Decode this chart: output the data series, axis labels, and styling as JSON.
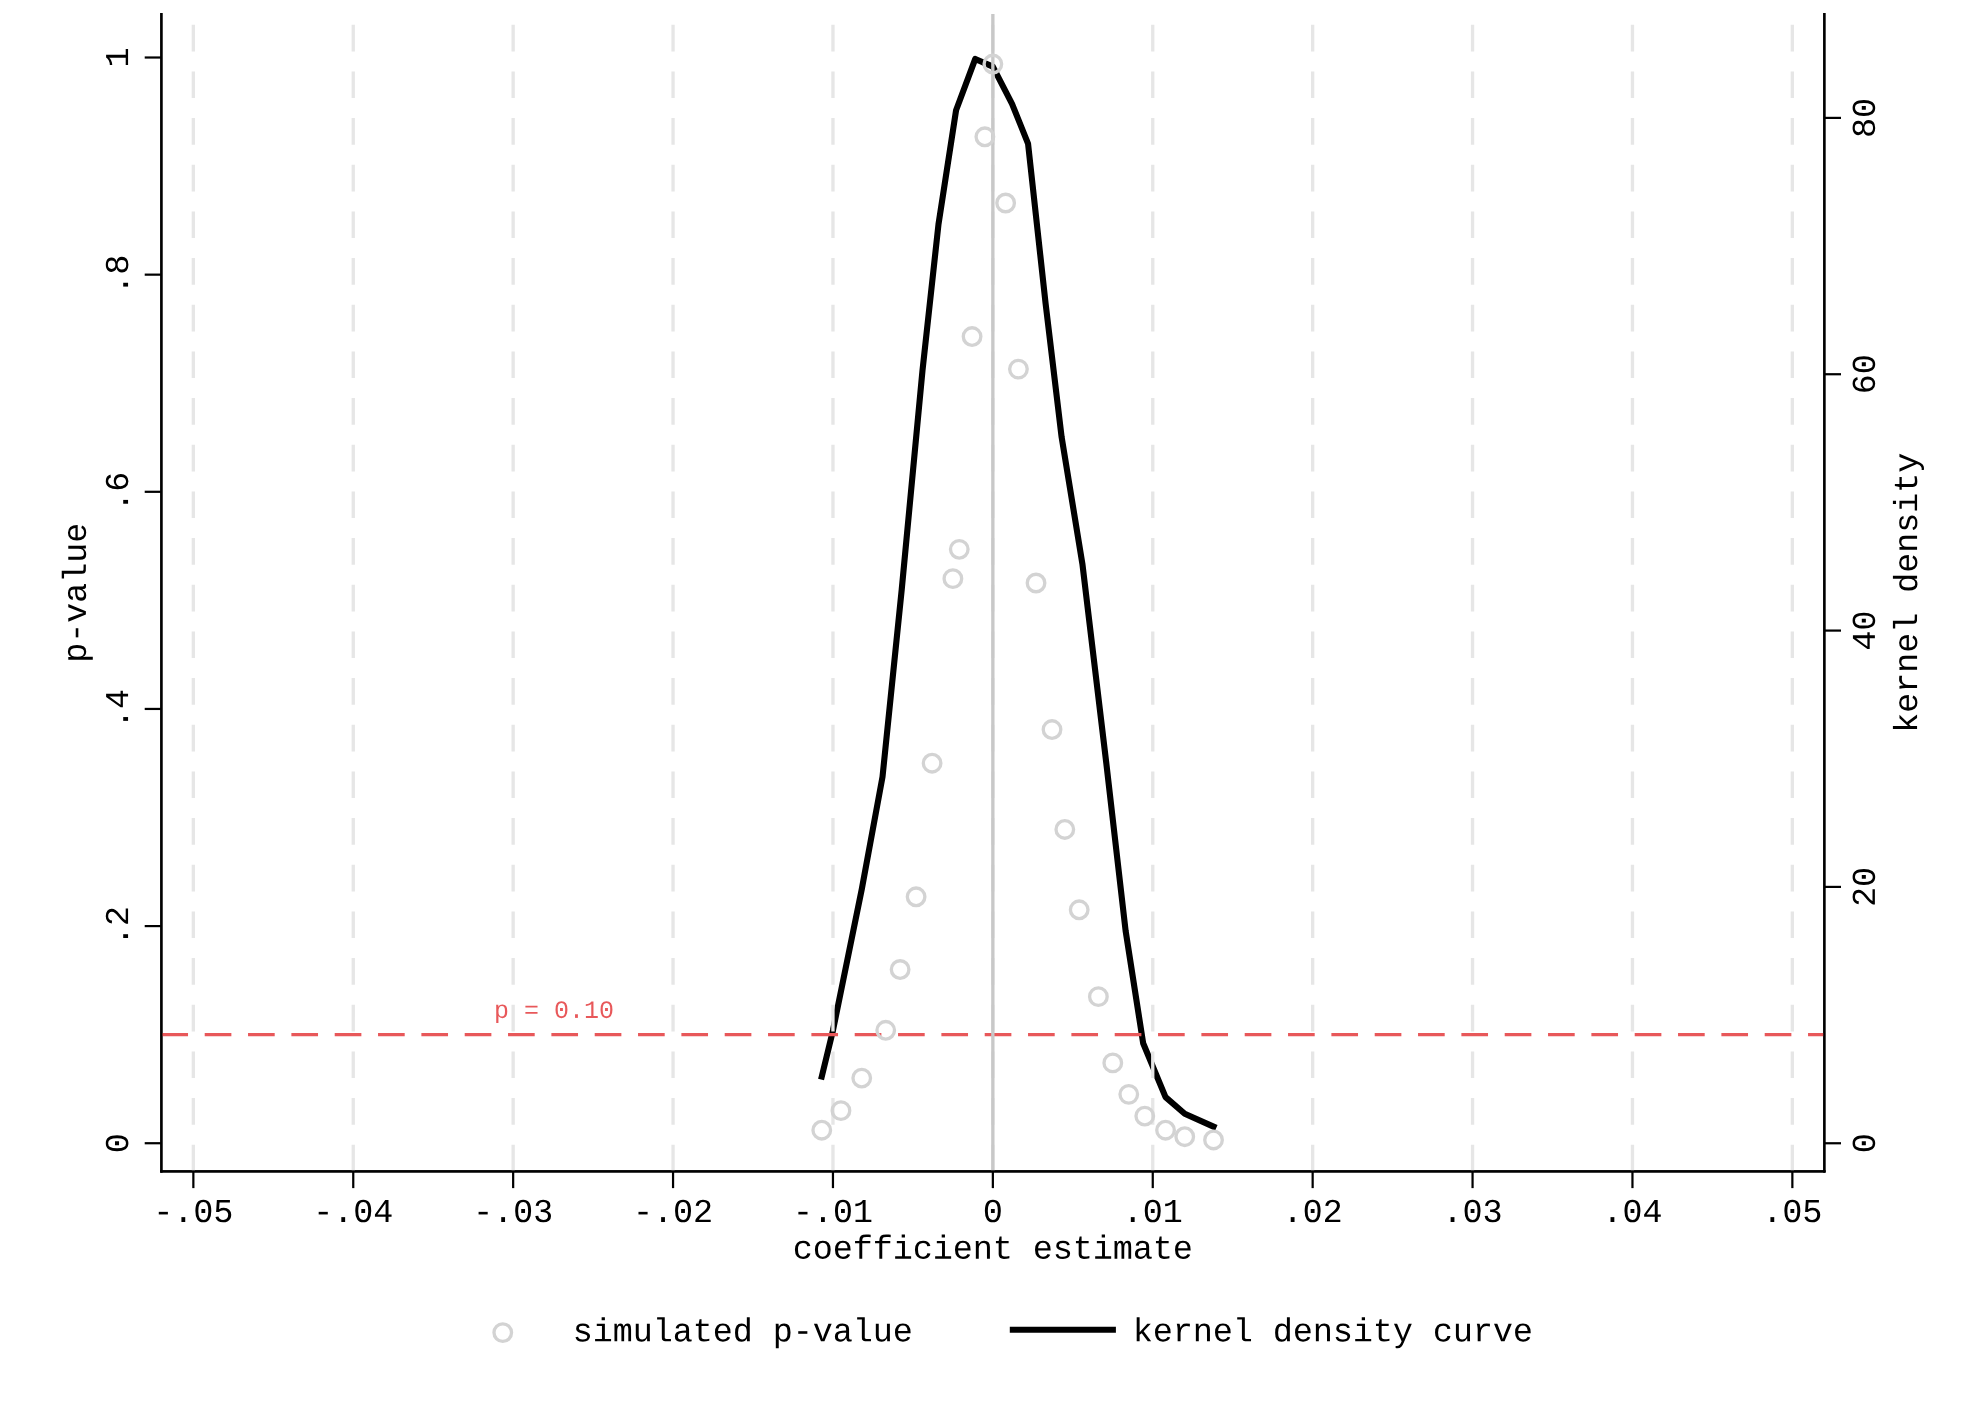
{
  "chart_data": {
    "type": "scatter",
    "xlabel": "coefficient estimate",
    "ylabel": "p-value",
    "y2label": "kernel density",
    "xlim": [
      -0.052,
      0.052
    ],
    "ylim": [
      -0.026,
      1.04
    ],
    "y2lim": [
      -2.2,
      88.1
    ],
    "xticks": [
      {
        "value": -0.05,
        "label": "-.05"
      },
      {
        "value": -0.04,
        "label": "-.04"
      },
      {
        "value": -0.03,
        "label": "-.03"
      },
      {
        "value": -0.02,
        "label": "-.02"
      },
      {
        "value": -0.01,
        "label": "-.01"
      },
      0,
      {
        "value": 0.01,
        "label": ".01"
      },
      {
        "value": 0.02,
        "label": ".02"
      },
      {
        "value": 0.03,
        "label": ".03"
      },
      {
        "value": 0.04,
        "label": ".04"
      },
      {
        "value": 0.05,
        "label": ".05"
      }
    ],
    "yticks": [
      0,
      {
        "value": 0.2,
        "label": ".2"
      },
      {
        "value": 0.4,
        "label": ".4"
      },
      {
        "value": 0.6,
        "label": ".6"
      },
      {
        "value": 0.8,
        "label": ".8"
      },
      1
    ],
    "y2ticks": [
      0,
      20,
      40,
      60,
      80
    ],
    "grid": "x",
    "legend": "bottom",
    "series": [
      {
        "name": "simulated p-value",
        "marker": "circle",
        "color": "#d3d3d3",
        "x": [
          -0.0107,
          -0.0095,
          -0.0082,
          -0.0067,
          -0.0058,
          -0.0048,
          -0.0038,
          -0.0025,
          -0.0021,
          -0.0013,
          -0.0005,
          0.0,
          0.0008,
          0.0016,
          0.0027,
          0.0037,
          0.0045,
          0.0054,
          0.0066,
          0.0075,
          0.0085,
          0.0095,
          0.0108,
          0.012,
          0.0138
        ],
        "values": [
          0.012,
          0.03,
          0.06,
          0.104,
          0.16,
          0.227,
          0.35,
          0.52,
          0.547,
          0.743,
          0.927,
          0.994,
          0.866,
          0.713,
          0.516,
          0.381,
          0.289,
          0.215,
          0.135,
          0.074,
          0.045,
          0.025,
          0.012,
          0.006,
          0.003
        ]
      },
      {
        "name": "kernel density curve",
        "type": "line",
        "axis": "y2",
        "color": "#000000",
        "line_style": "solid",
        "x": [
          -0.0107,
          -0.01,
          -0.0082,
          -0.0069,
          -0.0057,
          -0.0044,
          -0.0034,
          -0.0023,
          -0.0011,
          0.0,
          0.0012,
          0.0022,
          0.0033,
          0.0043,
          0.0056,
          0.0071,
          0.0083,
          0.0094,
          0.0108,
          0.012,
          0.0138
        ],
        "values": [
          5.2,
          8.8,
          19.8,
          28.6,
          43.2,
          60.3,
          71.7,
          80.6,
          84.6,
          84.0,
          81.1,
          78.0,
          65.5,
          55.1,
          45.2,
          29.6,
          16.6,
          7.8,
          3.6,
          2.3,
          1.3
        ]
      }
    ],
    "ref_lines": [
      {
        "axis": "y",
        "value": 0.1,
        "label": "p = 0.10",
        "color": "#e8585a",
        "line_style": "dashed"
      },
      {
        "axis": "x",
        "value": 0,
        "color": "#c8c8c8",
        "line_style": "solid"
      }
    ]
  }
}
